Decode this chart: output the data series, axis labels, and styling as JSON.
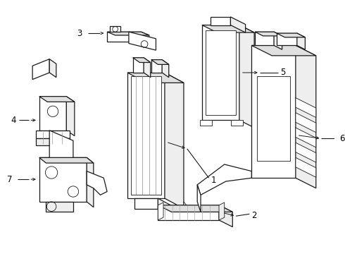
{
  "background_color": "#ffffff",
  "line_color": "#1a1a1a",
  "label_color": "#000000",
  "lw": 0.9,
  "tlw": 0.6,
  "fig_width": 4.9,
  "fig_height": 3.6,
  "dpi": 100
}
